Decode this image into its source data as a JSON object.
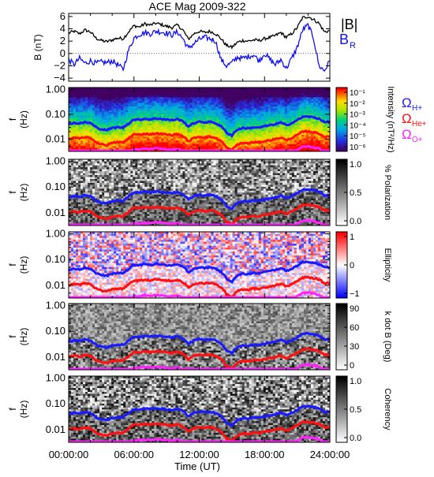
{
  "figure": {
    "title": "ACE Mag 2009-322",
    "time_axis": {
      "label": "Time (UT)",
      "ticks": [
        "00:00:00",
        "06:00:00",
        "12:00:00",
        "18:00:00",
        "24:00:00"
      ],
      "range_hours": [
        0,
        24
      ]
    }
  },
  "chart_data": [
    {
      "type": "line",
      "panel": "magnetic-field",
      "ylabel": "B (nT)",
      "ylim": [
        -4.5,
        6.5
      ],
      "yticks": [
        "6",
        "4",
        "2",
        "0",
        "−2",
        "−4"
      ],
      "ytick_values": [
        6,
        4,
        2,
        0,
        -2,
        -4
      ],
      "legend_labels": {
        "b_total": "|B|",
        "b_r_main": "B",
        "b_r_sub": "R"
      },
      "series": [
        {
          "name": "|B|",
          "color": "#000000",
          "x": [
            0,
            0.5,
            1,
            1.5,
            2,
            2.5,
            3,
            3.5,
            4,
            4.5,
            5,
            5.5,
            6,
            6.5,
            7,
            7.5,
            8,
            8.5,
            9,
            9.5,
            10,
            10.5,
            11,
            11.5,
            12,
            12.5,
            13,
            13.5,
            14,
            14.5,
            15,
            15.5,
            16,
            16.5,
            17,
            17.5,
            18,
            18.5,
            19,
            19.5,
            20,
            20.5,
            21,
            21.5,
            22,
            22.5,
            23,
            23.5,
            24
          ],
          "values": [
            3.3,
            3.6,
            3.2,
            3.8,
            3.5,
            2.5,
            2.1,
            1.9,
            2.2,
            2.5,
            2.4,
            3.5,
            4.5,
            4.3,
            4.8,
            4.6,
            4.9,
            4.7,
            4.4,
            4.2,
            4.6,
            3.8,
            2.3,
            3.2,
            3.6,
            3.4,
            3.6,
            3.2,
            2.4,
            1.3,
            1.0,
            1.8,
            2.1,
            2.0,
            2.2,
            2.1,
            2.4,
            2.6,
            2.9,
            3.4,
            2.6,
            3.2,
            4.2,
            5.8,
            6.0,
            5.5,
            4.9,
            3.5,
            3.7
          ]
        },
        {
          "name": "B_R",
          "color": "#1010ee",
          "x": [
            0,
            0.5,
            1,
            1.5,
            2,
            2.5,
            3,
            3.5,
            4,
            4.5,
            5,
            5.5,
            6,
            6.5,
            7,
            7.5,
            8,
            8.5,
            9,
            9.5,
            10,
            10.5,
            11,
            11.5,
            12,
            12.5,
            13,
            13.5,
            14,
            14.5,
            15,
            15.5,
            16,
            16.5,
            17,
            17.5,
            18,
            18.5,
            19,
            19.5,
            20,
            20.5,
            21,
            21.5,
            22,
            22.5,
            23,
            23.5,
            24
          ],
          "values": [
            -1.0,
            -1.8,
            -0.8,
            -1.6,
            -1.2,
            -1.6,
            -1.4,
            -1.5,
            -1.2,
            -1.8,
            -2.6,
            0.5,
            2.5,
            3.1,
            3.4,
            3.2,
            3.6,
            3.5,
            3.3,
            3.0,
            3.5,
            2.4,
            0.8,
            1.6,
            2.3,
            2.6,
            2.4,
            2.0,
            -1.0,
            -2.0,
            -1.5,
            -0.6,
            -0.8,
            -0.5,
            -0.2,
            -1.2,
            0.0,
            -1.0,
            -1.8,
            -1.0,
            -2.4,
            -0.8,
            1.0,
            3.8,
            4.6,
            2.5,
            -2.0,
            -2.8,
            -1.2
          ]
        }
      ]
    },
    {
      "type": "heatmap",
      "panel": "intensity",
      "ylabel": "f (Hz)",
      "yticks": [
        "1.00",
        "0.10",
        "0.01"
      ],
      "colorbar": {
        "label": "Intensity (nT²/Hz)",
        "ticks": [
          "10⁻¹",
          "10⁻²",
          "10⁻³",
          "10⁻⁴",
          "10⁻⁵",
          "10⁻⁶"
        ]
      },
      "gyro_legend": [
        "ΩH+",
        "ΩHe+",
        "ΩO+"
      ]
    },
    {
      "type": "heatmap",
      "panel": "polarization",
      "ylabel": "f (Hz)",
      "yticks": [
        "1.00",
        "0.10",
        "0.01"
      ],
      "colorbar": {
        "label": "% Polarization",
        "ticks": [
          "1.0",
          "0.5",
          "0.0"
        ]
      }
    },
    {
      "type": "heatmap",
      "panel": "ellipticity",
      "ylabel": "f (Hz)",
      "yticks": [
        "1.00",
        "0.10",
        "0.01"
      ],
      "colorbar": {
        "label": "Ellipticity",
        "ticks": [
          "1",
          "0",
          "−1"
        ]
      }
    },
    {
      "type": "heatmap",
      "panel": "k-dot-b",
      "ylabel": "f (Hz)",
      "yticks": [
        "1.00",
        "0.10",
        "0.01"
      ],
      "colorbar": {
        "label": "k dot B (Deg)",
        "ticks": [
          "90",
          "60",
          "30",
          "0"
        ]
      }
    },
    {
      "type": "heatmap",
      "panel": "coherency",
      "ylabel": "f (Hz)",
      "yticks": [
        "1.00",
        "0.10",
        "0.01"
      ],
      "colorbar": {
        "label": "Coherency",
        "ticks": [
          "1.0",
          "0.5",
          "0.0"
        ]
      }
    }
  ],
  "gyrofrequencies": {
    "colors": {
      "H+": "#1a1aff",
      "He+": "#ff1010",
      "O+": "#ff22ff"
    },
    "x": [
      0,
      0.5,
      1,
      1.5,
      2,
      2.5,
      3,
      3.5,
      4,
      4.5,
      5,
      5.5,
      6,
      6.5,
      7,
      7.5,
      8,
      8.5,
      9,
      9.5,
      10,
      10.5,
      11,
      11.5,
      12,
      12.5,
      13,
      13.5,
      14,
      14.5,
      15,
      15.5,
      16,
      16.5,
      17,
      17.5,
      18,
      18.5,
      19,
      19.5,
      20,
      20.5,
      21,
      21.5,
      22,
      22.5,
      23,
      23.5,
      24
    ],
    "H_plus_hz": [
      0.04,
      0.045,
      0.042,
      0.048,
      0.044,
      0.03,
      0.025,
      0.023,
      0.028,
      0.03,
      0.029,
      0.042,
      0.062,
      0.06,
      0.066,
      0.062,
      0.068,
      0.065,
      0.061,
      0.058,
      0.064,
      0.052,
      0.032,
      0.044,
      0.05,
      0.047,
      0.05,
      0.044,
      0.033,
      0.018,
      0.014,
      0.024,
      0.028,
      0.027,
      0.03,
      0.029,
      0.033,
      0.036,
      0.04,
      0.046,
      0.036,
      0.044,
      0.058,
      0.078,
      0.082,
      0.075,
      0.067,
      0.048,
      0.05
    ]
  }
}
